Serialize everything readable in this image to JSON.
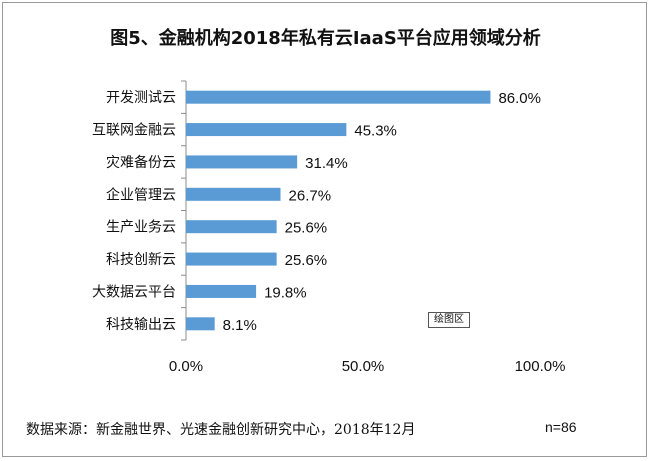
{
  "chart_data": {
    "type": "bar",
    "orientation": "horizontal",
    "title": "图5、金融机构2018年私有云IaaS平台应用领域分析",
    "categories": [
      "开发测试云",
      "互联网金融云",
      "灾难备份云",
      "企业管理云",
      "生产业务云",
      "科技创新云",
      "大数据云平台",
      "科技输出云"
    ],
    "values": [
      86.0,
      45.3,
      31.4,
      26.7,
      25.6,
      25.6,
      19.8,
      8.1
    ],
    "value_labels": [
      "86.0%",
      "45.3%",
      "31.4%",
      "26.7%",
      "25.6%",
      "25.6%",
      "19.8%",
      "8.1%"
    ],
    "xlim": [
      0,
      100
    ],
    "x_ticks": [
      0,
      50,
      100
    ],
    "x_tick_labels": [
      "0.0%",
      "50.0%",
      "100.0%"
    ],
    "xlabel": "",
    "ylabel": "",
    "grid": false,
    "legend": "none",
    "bar_color": "#5b9bd5"
  },
  "plot_area_tag": "绘图区",
  "source": "数据来源：新金融世界、光速金融创新研究中心，2018年12月",
  "sample_size": "n=86"
}
